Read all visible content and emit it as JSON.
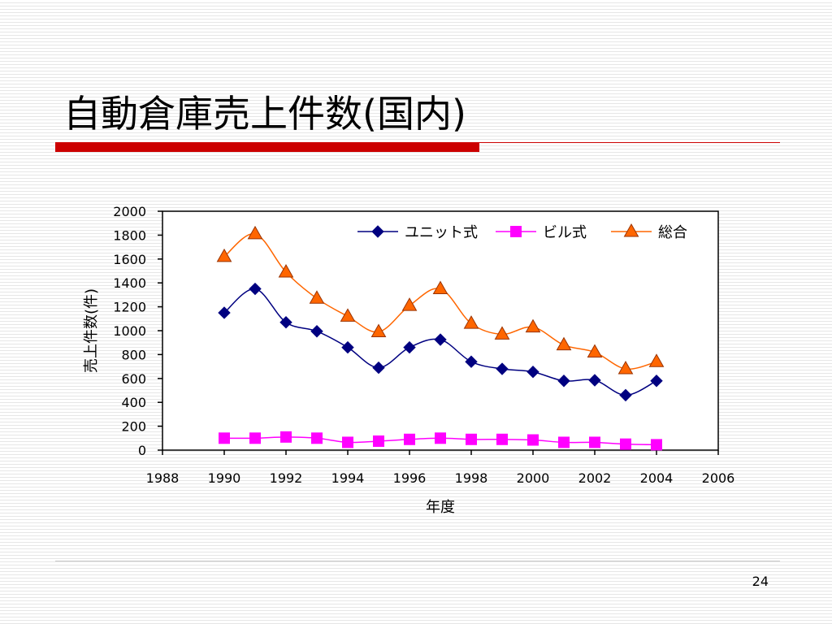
{
  "slide": {
    "title": "自動倉庫売上件数(国内)",
    "page_number": "24"
  },
  "chart_data": {
    "type": "line",
    "title": "",
    "xlabel": "年度",
    "ylabel": "売上件数(件)",
    "xlim": [
      1988,
      2006
    ],
    "ylim": [
      0,
      2000
    ],
    "x_ticks": [
      1988,
      1990,
      1992,
      1994,
      1996,
      1998,
      2000,
      2002,
      2004,
      2006
    ],
    "y_ticks": [
      0,
      200,
      400,
      600,
      800,
      1000,
      1200,
      1400,
      1600,
      1800,
      2000
    ],
    "grid": false,
    "legend_position": "top-right",
    "x": [
      1990,
      1991,
      1992,
      1993,
      1994,
      1995,
      1996,
      1997,
      1998,
      1999,
      2000,
      2001,
      2002,
      2003,
      2004
    ],
    "series": [
      {
        "name": "ユニット式",
        "color": "#000080",
        "marker": "diamond",
        "values": [
          1150,
          1350,
          1070,
          995,
          860,
          690,
          860,
          925,
          740,
          680,
          655,
          580,
          585,
          460,
          580
        ]
      },
      {
        "name": "ビル式",
        "color": "#ff00ff",
        "marker": "square",
        "values": [
          100,
          100,
          110,
          100,
          65,
          75,
          90,
          100,
          90,
          90,
          85,
          65,
          65,
          50,
          45
        ]
      },
      {
        "name": "総合",
        "color": "#ff6600",
        "marker": "triangle",
        "values": [
          1620,
          1810,
          1490,
          1270,
          1120,
          990,
          1210,
          1350,
          1060,
          970,
          1030,
          880,
          820,
          680,
          740
        ]
      }
    ]
  }
}
